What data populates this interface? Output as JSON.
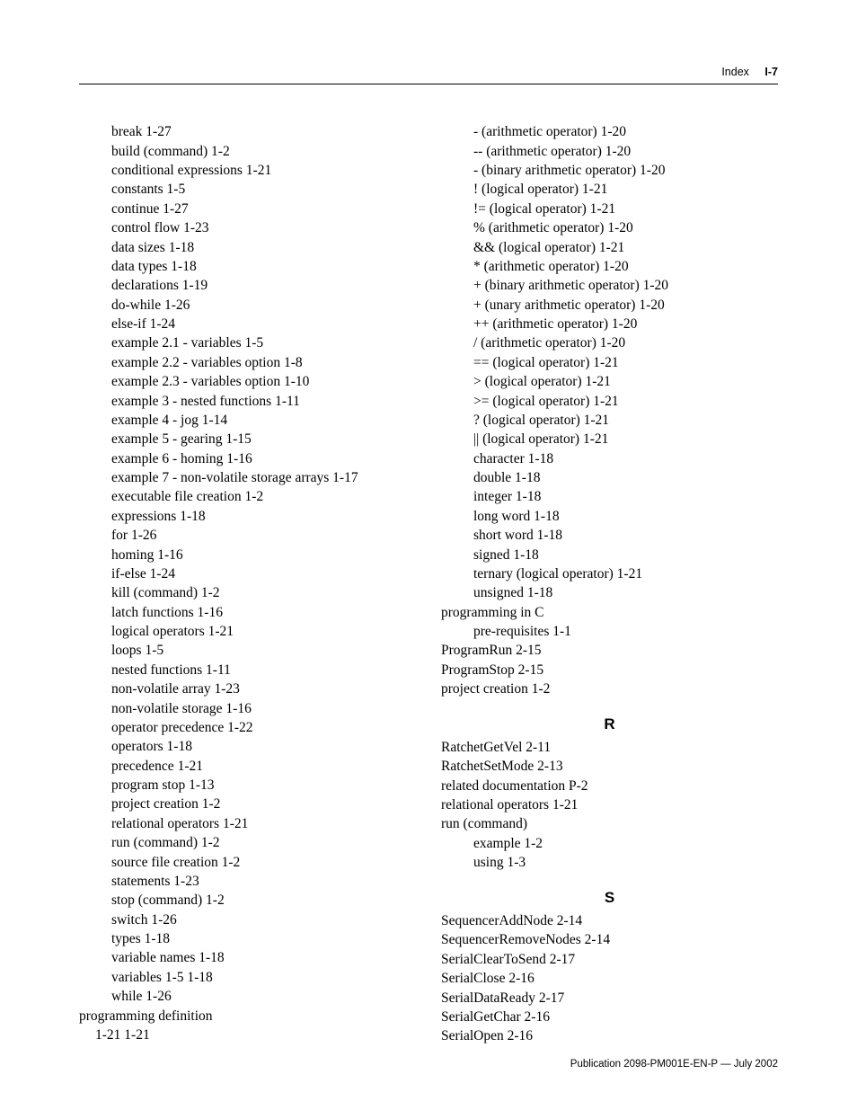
{
  "header": {
    "section": "Index",
    "page": "I-7"
  },
  "footer": "Publication 2098-PM001E-EN-P — July 2002",
  "left": [
    {
      "cls": "lvl1",
      "t": "break 1-27"
    },
    {
      "cls": "lvl1",
      "t": "build (command) 1-2"
    },
    {
      "cls": "lvl1",
      "t": "conditional expressions 1-21"
    },
    {
      "cls": "lvl1",
      "t": "constants 1-5"
    },
    {
      "cls": "lvl1",
      "t": "continue 1-27"
    },
    {
      "cls": "lvl1",
      "t": "control flow 1-23"
    },
    {
      "cls": "lvl1",
      "t": "data sizes 1-18"
    },
    {
      "cls": "lvl1",
      "t": "data types 1-18"
    },
    {
      "cls": "lvl1",
      "t": "declarations 1-19"
    },
    {
      "cls": "lvl1",
      "t": "do-while 1-26"
    },
    {
      "cls": "lvl1",
      "t": "else-if 1-24"
    },
    {
      "cls": "lvl1",
      "t": "example 2.1 - variables 1-5"
    },
    {
      "cls": "lvl1",
      "t": "example 2.2 - variables option 1-8"
    },
    {
      "cls": "lvl1",
      "t": "example 2.3 - variables option 1-10"
    },
    {
      "cls": "lvl1",
      "t": "example 3 - nested functions 1-11"
    },
    {
      "cls": "lvl1",
      "t": "example 4 - jog 1-14"
    },
    {
      "cls": "lvl1",
      "t": "example 5 - gearing 1-15"
    },
    {
      "cls": "lvl1",
      "t": "example 6 - homing 1-16"
    },
    {
      "cls": "entry-justify",
      "t": "example 7 - non-volatile storage arrays 1-17"
    },
    {
      "cls": "lvl1",
      "t": "executable file creation 1-2"
    },
    {
      "cls": "lvl1",
      "t": "expressions 1-18"
    },
    {
      "cls": "lvl1",
      "t": "for 1-26"
    },
    {
      "cls": "lvl1",
      "t": "homing 1-16"
    },
    {
      "cls": "lvl1",
      "t": "if-else 1-24"
    },
    {
      "cls": "lvl1",
      "t": "kill (command) 1-2"
    },
    {
      "cls": "lvl1",
      "t": "latch functions 1-16"
    },
    {
      "cls": "lvl1",
      "t": "logical operators 1-21"
    },
    {
      "cls": "lvl1",
      "t": "loops 1-5"
    },
    {
      "cls": "lvl1",
      "t": "nested functions 1-11"
    },
    {
      "cls": "lvl1",
      "t": "non-volatile array 1-23"
    },
    {
      "cls": "lvl1",
      "t": "non-volatile storage 1-16"
    },
    {
      "cls": "lvl1",
      "t": "operator precedence 1-22"
    },
    {
      "cls": "lvl1",
      "t": "operators 1-18"
    },
    {
      "cls": "lvl1",
      "t": "precedence 1-21"
    },
    {
      "cls": "lvl1",
      "t": "program stop 1-13"
    },
    {
      "cls": "lvl1",
      "t": "project creation 1-2"
    },
    {
      "cls": "lvl1",
      "t": "relational operators 1-21"
    },
    {
      "cls": "lvl1",
      "t": "run (command) 1-2"
    },
    {
      "cls": "lvl1",
      "t": "source file creation 1-2"
    },
    {
      "cls": "lvl1",
      "t": "statements 1-23"
    },
    {
      "cls": "lvl1",
      "t": "stop (command) 1-2"
    },
    {
      "cls": "lvl1",
      "t": "switch 1-26"
    },
    {
      "cls": "lvl1",
      "t": "types 1-18"
    },
    {
      "cls": "lvl1",
      "t": "variable names 1-18"
    },
    {
      "cls": "lvl1",
      "t": "variables 1-5  1-18"
    },
    {
      "cls": "lvl1",
      "t": "while 1-26"
    },
    {
      "cls": "lvl0",
      "t": "programming definition"
    },
    {
      "cls": "lvl1b",
      "t": "1-21  1-21"
    }
  ],
  "right": [
    {
      "cls": "lvl1",
      "t": "- (arithmetic operator) 1-20"
    },
    {
      "cls": "lvl1",
      "t": "-- (arithmetic operator) 1-20"
    },
    {
      "cls": "lvl1",
      "t": "- (binary arithmetic operator) 1-20"
    },
    {
      "cls": "lvl1",
      "t": "! (logical operator) 1-21"
    },
    {
      "cls": "lvl1",
      "t": "!= (logical operator) 1-21"
    },
    {
      "cls": "lvl1",
      "t": "% (arithmetic operator) 1-20"
    },
    {
      "cls": "lvl1",
      "t": "&& (logical operator) 1-21"
    },
    {
      "cls": "lvl1",
      "t": "* (arithmetic operator) 1-20"
    },
    {
      "cls": "lvl1",
      "t": "+ (binary arithmetic operator) 1-20"
    },
    {
      "cls": "lvl1",
      "t": "+ (unary arithmetic operator) 1-20"
    },
    {
      "cls": "lvl1",
      "t": "++ (arithmetic operator) 1-20"
    },
    {
      "cls": "lvl1",
      "t": "/ (arithmetic operator) 1-20"
    },
    {
      "cls": "lvl1",
      "t": "== (logical operator) 1-21"
    },
    {
      "cls": "lvl1",
      "t": "> (logical operator) 1-21"
    },
    {
      "cls": "lvl1",
      "t": ">= (logical operator) 1-21"
    },
    {
      "cls": "lvl1",
      "t": "? (logical operator) 1-21"
    },
    {
      "cls": "lvl1",
      "t": "|| (logical operator) 1-21"
    },
    {
      "cls": "lvl1",
      "t": "character 1-18"
    },
    {
      "cls": "lvl1",
      "t": "double 1-18"
    },
    {
      "cls": "lvl1",
      "t": "integer 1-18"
    },
    {
      "cls": "lvl1",
      "t": "long word 1-18"
    },
    {
      "cls": "lvl1",
      "t": "short word 1-18"
    },
    {
      "cls": "lvl1",
      "t": "signed 1-18"
    },
    {
      "cls": "lvl1",
      "t": "ternary (logical operator) 1-21"
    },
    {
      "cls": "lvl1",
      "t": "unsigned 1-18"
    },
    {
      "cls": "lvl0",
      "t": "programming in C"
    },
    {
      "cls": "lvl1",
      "t": "pre-requisites 1-1"
    },
    {
      "cls": "lvl0",
      "t": "ProgramRun 2-15"
    },
    {
      "cls": "lvl0",
      "t": "ProgramStop 2-15"
    },
    {
      "cls": "lvl0",
      "t": "project creation 1-2"
    },
    {
      "cls": "section-head",
      "t": "R"
    },
    {
      "cls": "lvl0",
      "t": "RatchetGetVel 2-11"
    },
    {
      "cls": "lvl0",
      "t": "RatchetSetMode 2-13"
    },
    {
      "cls": "lvl0",
      "t": "related documentation P-2"
    },
    {
      "cls": "lvl0",
      "t": "relational operators 1-21"
    },
    {
      "cls": "lvl0",
      "t": "run (command)"
    },
    {
      "cls": "lvl1",
      "t": "example 1-2"
    },
    {
      "cls": "lvl1",
      "t": "using 1-3"
    },
    {
      "cls": "section-head",
      "t": "S"
    },
    {
      "cls": "lvl0",
      "t": "SequencerAddNode 2-14"
    },
    {
      "cls": "lvl0",
      "t": "SequencerRemoveNodes 2-14"
    },
    {
      "cls": "lvl0",
      "t": "SerialClearToSend 2-17"
    },
    {
      "cls": "lvl0",
      "t": "SerialClose 2-16"
    },
    {
      "cls": "lvl0",
      "t": "SerialDataReady 2-17"
    },
    {
      "cls": "lvl0",
      "t": "SerialGetChar 2-16"
    },
    {
      "cls": "lvl0",
      "t": "SerialOpen 2-16"
    }
  ]
}
